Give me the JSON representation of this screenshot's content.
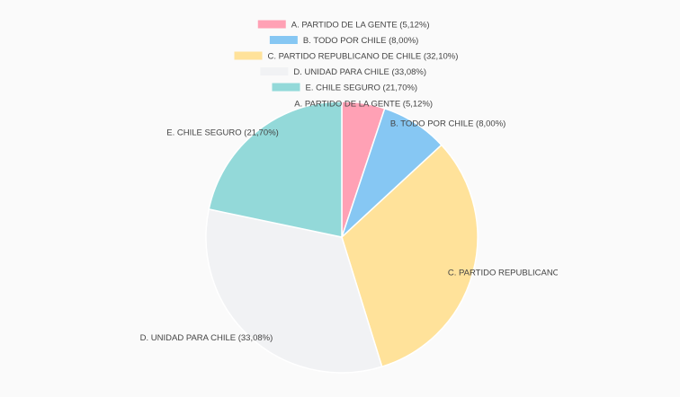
{
  "chart_data": {
    "type": "pie",
    "title": "",
    "legend_position": "top",
    "categories": [
      "A. PARTIDO DE LA GENTE",
      "B. TODO POR CHILE",
      "C. PARTIDO REPUBLICANO DE CHILE",
      "D. UNIDAD PARA CHILE",
      "E. CHILE SEGURO"
    ],
    "values": [
      5.12,
      8.0,
      32.1,
      33.08,
      21.7
    ],
    "labels": [
      "A. PARTIDO DE LA GENTE (5,12%)",
      "B. TODO POR CHILE (8,00%)",
      "C. PARTIDO REPUBLICANO DE CHILE (32,10%)",
      "D. UNIDAD PARA CHILE (33,08%)",
      "E. CHILE SEGURO (21,70%)"
    ],
    "colors": [
      "#ffa1b5",
      "#86c7f3",
      "#ffe29a",
      "#f1f2f4",
      "#93d9d9"
    ]
  }
}
